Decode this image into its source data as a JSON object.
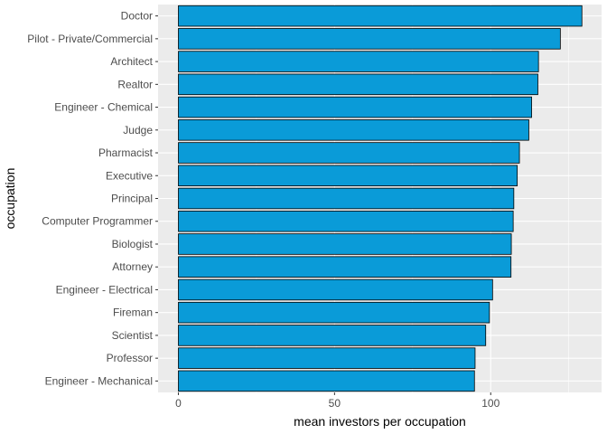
{
  "chart_data": {
    "type": "bar",
    "orientation": "horizontal",
    "categories": [
      "Doctor",
      "Pilot - Private/Commercial",
      "Architect",
      "Realtor",
      "Engineer - Chemical",
      "Judge",
      "Pharmacist",
      "Executive",
      "Principal",
      "Computer Programmer",
      "Biologist",
      "Attorney",
      "Engineer - Electrical",
      "Fireman",
      "Scientist",
      "Professor",
      "Engineer - Mechanical"
    ],
    "values": [
      129.2,
      122.3,
      115.3,
      115.1,
      113.1,
      112.2,
      109.2,
      108.5,
      107.4,
      107.2,
      106.6,
      106.5,
      100.6,
      99.6,
      98.4,
      95.0,
      94.8
    ],
    "xlabel": "mean investors per occupation",
    "ylabel": "occupation",
    "xlim": [
      -6.5,
      135.5
    ],
    "xticks": [
      0,
      50,
      100
    ],
    "bar_color": "#0a9bd8",
    "bar_outline": "#000000",
    "panel_background": "#ebebeb",
    "grid": true
  }
}
